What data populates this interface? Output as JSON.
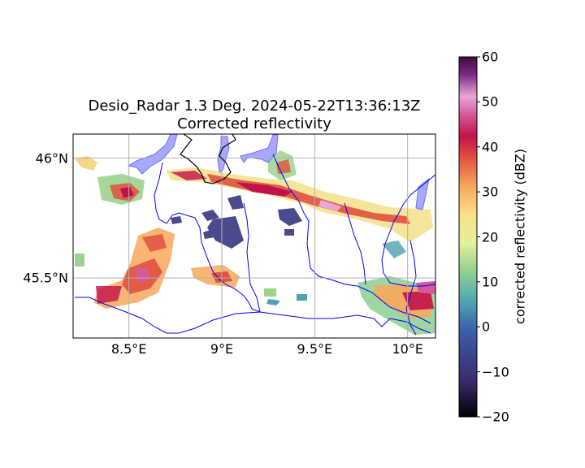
{
  "title": {
    "line1": "Desio_Radar 1.3 Deg. 2024-05-22T13:36:13Z",
    "line2": "Corrected reflectivity"
  },
  "map": {
    "lon_range": [
      8.2,
      10.15
    ],
    "lat_range": [
      45.25,
      46.1
    ],
    "lon_ticks": [
      {
        "value": 8.5,
        "label": "8.5°E"
      },
      {
        "value": 9.0,
        "label": "9°E"
      },
      {
        "value": 9.5,
        "label": "9.5°E"
      },
      {
        "value": 10.0,
        "label": "10°E"
      }
    ],
    "lat_ticks": [
      {
        "value": 46.0,
        "label": "46°N"
      },
      {
        "value": 45.5,
        "label": "45.5°N"
      }
    ],
    "grid": true
  },
  "colorbar": {
    "label": "corrected reflectivity (dBZ)",
    "min": -20,
    "max": 60,
    "ticks": [
      "60",
      "50",
      "40",
      "30",
      "20",
      "10",
      "0",
      "−10",
      "−20"
    ],
    "colormap": "Spectral_r",
    "stops": [
      "#000004",
      "#3b2a6b",
      "#3a5fa8",
      "#4fa3b1",
      "#8ccf91",
      "#e0f09a",
      "#fbe189",
      "#f7a85c",
      "#e2503f",
      "#c2124a",
      "#d55a9c",
      "#e6a8d6",
      "#7e2a86",
      "#3d0b3f"
    ]
  },
  "colors": {
    "rivers": "#0000ff",
    "lakes": "#a8a8ff",
    "border": "#000000",
    "grid": "#b0b0b0"
  }
}
